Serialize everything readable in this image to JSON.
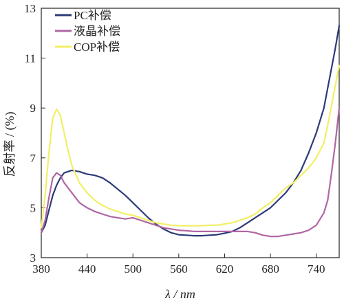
{
  "chart_data": {
    "type": "line",
    "xlabel": "λ / nm",
    "ylabel": "反射率 / (%)",
    "xlim": [
      380,
      770
    ],
    "ylim": [
      3,
      13
    ],
    "x_ticks": [
      "380",
      "440",
      "500",
      "560",
      "620",
      "680",
      "740"
    ],
    "y_ticks": [
      "3",
      "5",
      "7",
      "9",
      "11",
      "13"
    ],
    "grid": false,
    "legend_position": "top-left",
    "series": [
      {
        "name": "PC补偿",
        "color": "#2b3a78",
        "points": [
          [
            380,
            4.0
          ],
          [
            385,
            4.3
          ],
          [
            390,
            4.9
          ],
          [
            395,
            5.5
          ],
          [
            400,
            5.9
          ],
          [
            405,
            6.2
          ],
          [
            410,
            6.4
          ],
          [
            420,
            6.5
          ],
          [
            430,
            6.45
          ],
          [
            440,
            6.35
          ],
          [
            450,
            6.3
          ],
          [
            460,
            6.2
          ],
          [
            470,
            6.0
          ],
          [
            480,
            5.75
          ],
          [
            490,
            5.5
          ],
          [
            500,
            5.2
          ],
          [
            510,
            4.9
          ],
          [
            520,
            4.6
          ],
          [
            530,
            4.35
          ],
          [
            540,
            4.15
          ],
          [
            550,
            4.0
          ],
          [
            560,
            3.92
          ],
          [
            570,
            3.9
          ],
          [
            580,
            3.88
          ],
          [
            590,
            3.88
          ],
          [
            600,
            3.9
          ],
          [
            610,
            3.92
          ],
          [
            620,
            3.98
          ],
          [
            630,
            4.05
          ],
          [
            640,
            4.2
          ],
          [
            650,
            4.4
          ],
          [
            660,
            4.6
          ],
          [
            670,
            4.8
          ],
          [
            680,
            5.0
          ],
          [
            690,
            5.3
          ],
          [
            700,
            5.6
          ],
          [
            710,
            6.0
          ],
          [
            720,
            6.5
          ],
          [
            730,
            7.2
          ],
          [
            740,
            8.0
          ],
          [
            750,
            9.0
          ],
          [
            755,
            9.8
          ],
          [
            760,
            10.6
          ],
          [
            765,
            11.4
          ],
          [
            770,
            12.3
          ]
        ]
      },
      {
        "name": "液晶补偿",
        "color": "#b066a3",
        "points": [
          [
            380,
            4.0
          ],
          [
            385,
            4.5
          ],
          [
            390,
            5.4
          ],
          [
            395,
            6.2
          ],
          [
            400,
            6.4
          ],
          [
            405,
            6.3
          ],
          [
            410,
            6.0
          ],
          [
            420,
            5.6
          ],
          [
            430,
            5.2
          ],
          [
            440,
            5.0
          ],
          [
            450,
            4.85
          ],
          [
            460,
            4.75
          ],
          [
            470,
            4.65
          ],
          [
            480,
            4.6
          ],
          [
            490,
            4.55
          ],
          [
            500,
            4.6
          ],
          [
            510,
            4.5
          ],
          [
            520,
            4.4
          ],
          [
            530,
            4.3
          ],
          [
            540,
            4.2
          ],
          [
            550,
            4.15
          ],
          [
            560,
            4.1
          ],
          [
            570,
            4.08
          ],
          [
            580,
            4.05
          ],
          [
            590,
            4.05
          ],
          [
            600,
            4.05
          ],
          [
            610,
            4.05
          ],
          [
            620,
            4.05
          ],
          [
            630,
            4.05
          ],
          [
            640,
            4.05
          ],
          [
            650,
            4.05
          ],
          [
            660,
            4.0
          ],
          [
            670,
            3.9
          ],
          [
            680,
            3.85
          ],
          [
            690,
            3.85
          ],
          [
            700,
            3.9
          ],
          [
            710,
            3.95
          ],
          [
            720,
            4.0
          ],
          [
            730,
            4.1
          ],
          [
            740,
            4.3
          ],
          [
            750,
            4.8
          ],
          [
            755,
            5.3
          ],
          [
            760,
            6.4
          ],
          [
            765,
            7.6
          ],
          [
            770,
            9.0
          ]
        ]
      },
      {
        "name": "COP补偿",
        "color": "#f0f064",
        "points": [
          [
            380,
            4.2
          ],
          [
            385,
            5.5
          ],
          [
            390,
            7.2
          ],
          [
            395,
            8.6
          ],
          [
            400,
            8.95
          ],
          [
            405,
            8.7
          ],
          [
            410,
            8.0
          ],
          [
            415,
            7.3
          ],
          [
            420,
            6.7
          ],
          [
            430,
            6.0
          ],
          [
            440,
            5.6
          ],
          [
            450,
            5.3
          ],
          [
            460,
            5.1
          ],
          [
            470,
            4.95
          ],
          [
            480,
            4.85
          ],
          [
            490,
            4.75
          ],
          [
            500,
            4.7
          ],
          [
            510,
            4.6
          ],
          [
            520,
            4.5
          ],
          [
            530,
            4.4
          ],
          [
            540,
            4.35
          ],
          [
            550,
            4.3
          ],
          [
            560,
            4.28
          ],
          [
            570,
            4.28
          ],
          [
            580,
            4.28
          ],
          [
            590,
            4.28
          ],
          [
            600,
            4.3
          ],
          [
            610,
            4.3
          ],
          [
            620,
            4.35
          ],
          [
            630,
            4.4
          ],
          [
            640,
            4.5
          ],
          [
            650,
            4.6
          ],
          [
            660,
            4.75
          ],
          [
            670,
            5.0
          ],
          [
            680,
            5.2
          ],
          [
            690,
            5.5
          ],
          [
            700,
            5.8
          ],
          [
            710,
            6.0
          ],
          [
            720,
            6.3
          ],
          [
            730,
            6.6
          ],
          [
            740,
            7.0
          ],
          [
            750,
            7.6
          ],
          [
            755,
            8.3
          ],
          [
            760,
            9.1
          ],
          [
            765,
            9.9
          ],
          [
            770,
            10.7
          ]
        ]
      }
    ]
  }
}
